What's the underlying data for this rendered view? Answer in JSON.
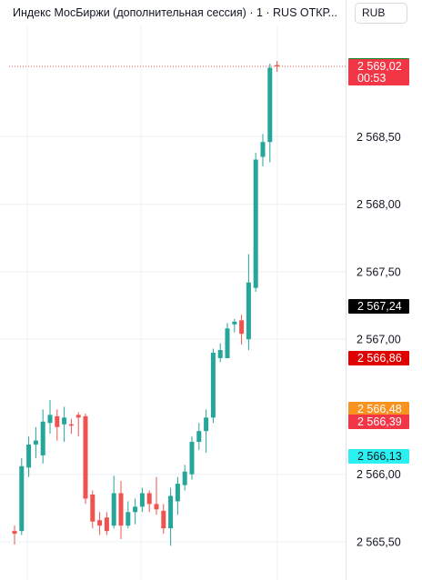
{
  "title": "Индекс МосБиржи (дополнительная сессия) · 1 · RUS  ОТКР...",
  "currency": "RUB",
  "colors": {
    "up": "#26a69a",
    "down": "#ef5350",
    "grid": "#eef0f3",
    "price_line": "#ef5350"
  },
  "price_labels": [
    {
      "text": "2 569,03",
      "value": 2569.03,
      "bg": "#0c8a2a",
      "fg": "#ffffff"
    },
    {
      "text": "2 569,02",
      "value": 2569.02,
      "bg": "#f23645",
      "fg": "#ffffff"
    },
    {
      "text": "00:53",
      "value": 2568.93,
      "bg": "#f23645",
      "fg": "#ffffff"
    },
    {
      "text": "2 567,24",
      "value": 2567.24,
      "bg": "#000000",
      "fg": "#ffffff"
    },
    {
      "text": "2 566,86",
      "value": 2566.86,
      "bg": "#e00000",
      "fg": "#ffffff"
    },
    {
      "text": "2 566,48",
      "value": 2566.48,
      "bg": "#f7931e",
      "fg": "#ffffff"
    },
    {
      "text": "2 566,39",
      "value": 2566.39,
      "bg": "#f23645",
      "fg": "#ffffff"
    },
    {
      "text": "2 566,13",
      "value": 2566.13,
      "bg": "#2bf0f0",
      "fg": "#131722"
    }
  ],
  "chart_data": {
    "type": "candlestick",
    "title": "Индекс МосБиржи (дополнительная сессия) · 1 · RUS  ОТКР...",
    "currency": "RUB",
    "y_ticks": [
      {
        "value": 2568.5,
        "label": "2 568,50"
      },
      {
        "value": 2568.0,
        "label": "2 568,00"
      },
      {
        "value": 2567.5,
        "label": "2 567,50"
      },
      {
        "value": 2567.0,
        "label": "2 567,00"
      },
      {
        "value": 2566.0,
        "label": "2 566,00"
      },
      {
        "value": 2565.5,
        "label": "2 565,50"
      }
    ],
    "ylim": [
      2565.3,
      2569.4
    ],
    "grid": true,
    "last_price": 2569.02,
    "candles": [
      {
        "o": 2565.58,
        "h": 2565.62,
        "l": 2565.48,
        "c": 2565.56
      },
      {
        "o": 2565.58,
        "h": 2566.12,
        "l": 2565.55,
        "c": 2566.06
      },
      {
        "o": 2566.05,
        "h": 2566.28,
        "l": 2565.98,
        "c": 2566.22
      },
      {
        "o": 2566.22,
        "h": 2566.35,
        "l": 2566.12,
        "c": 2566.25
      },
      {
        "o": 2566.14,
        "h": 2566.48,
        "l": 2566.08,
        "c": 2566.39
      },
      {
        "o": 2566.38,
        "h": 2566.55,
        "l": 2566.3,
        "c": 2566.44
      },
      {
        "o": 2566.43,
        "h": 2566.48,
        "l": 2566.25,
        "c": 2566.35
      },
      {
        "o": 2566.37,
        "h": 2566.5,
        "l": 2566.24,
        "c": 2566.42
      },
      {
        "o": 2566.37,
        "h": 2566.41,
        "l": 2566.3,
        "c": 2566.36
      },
      {
        "o": 2566.44,
        "h": 2566.46,
        "l": 2566.28,
        "c": 2566.42
      },
      {
        "o": 2566.43,
        "h": 2566.45,
        "l": 2565.78,
        "c": 2565.82
      },
      {
        "o": 2565.85,
        "h": 2565.88,
        "l": 2565.6,
        "c": 2565.65
      },
      {
        "o": 2565.66,
        "h": 2565.72,
        "l": 2565.55,
        "c": 2565.62
      },
      {
        "o": 2565.68,
        "h": 2565.72,
        "l": 2565.55,
        "c": 2565.58
      },
      {
        "o": 2565.62,
        "h": 2565.99,
        "l": 2565.6,
        "c": 2565.86
      },
      {
        "o": 2565.86,
        "h": 2565.95,
        "l": 2565.52,
        "c": 2565.62
      },
      {
        "o": 2565.62,
        "h": 2565.8,
        "l": 2565.6,
        "c": 2565.72
      },
      {
        "o": 2565.72,
        "h": 2565.82,
        "l": 2565.63,
        "c": 2565.76
      },
      {
        "o": 2565.76,
        "h": 2565.9,
        "l": 2565.72,
        "c": 2565.86
      },
      {
        "o": 2565.86,
        "h": 2565.88,
        "l": 2565.72,
        "c": 2565.78
      },
      {
        "o": 2565.78,
        "h": 2565.98,
        "l": 2565.7,
        "c": 2565.74
      },
      {
        "o": 2565.73,
        "h": 2565.78,
        "l": 2565.56,
        "c": 2565.6
      },
      {
        "o": 2565.6,
        "h": 2565.9,
        "l": 2565.47,
        "c": 2565.84
      },
      {
        "o": 2565.8,
        "h": 2565.98,
        "l": 2565.7,
        "c": 2565.93
      },
      {
        "o": 2565.92,
        "h": 2566.07,
        "l": 2565.88,
        "c": 2566.02
      },
      {
        "o": 2566.0,
        "h": 2566.28,
        "l": 2565.96,
        "c": 2566.24
      },
      {
        "o": 2566.24,
        "h": 2566.38,
        "l": 2566.18,
        "c": 2566.32
      },
      {
        "o": 2566.32,
        "h": 2566.48,
        "l": 2566.16,
        "c": 2566.42
      },
      {
        "o": 2566.42,
        "h": 2566.93,
        "l": 2566.38,
        "c": 2566.9
      },
      {
        "o": 2566.86,
        "h": 2566.97,
        "l": 2566.83,
        "c": 2566.92
      },
      {
        "o": 2566.86,
        "h": 2567.12,
        "l": 2566.86,
        "c": 2567.08
      },
      {
        "o": 2567.11,
        "h": 2567.15,
        "l": 2567.05,
        "c": 2567.13
      },
      {
        "o": 2567.14,
        "h": 2567.18,
        "l": 2566.96,
        "c": 2567.04
      },
      {
        "o": 2567.0,
        "h": 2567.63,
        "l": 2566.92,
        "c": 2567.42
      },
      {
        "o": 2567.38,
        "h": 2568.38,
        "l": 2567.35,
        "c": 2568.33
      },
      {
        "o": 2568.35,
        "h": 2568.52,
        "l": 2568.28,
        "c": 2568.46
      },
      {
        "o": 2568.46,
        "h": 2569.04,
        "l": 2568.31,
        "c": 2569.01
      },
      {
        "o": 2569.03,
        "h": 2569.06,
        "l": 2568.98,
        "c": 2569.02
      }
    ]
  }
}
